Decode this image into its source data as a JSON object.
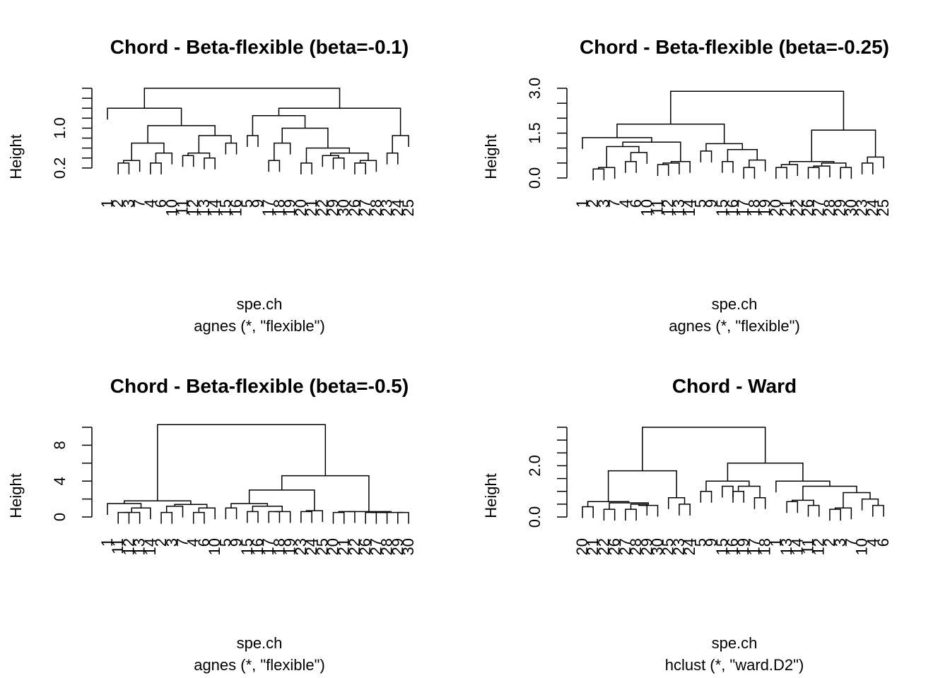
{
  "chart_data": [
    {
      "type": "dendrogram",
      "title": "Chord - Beta-flexible (beta=-0.1)",
      "xlabel": "spe.ch",
      "sub": "agnes (*, \"flexible\")",
      "ylabel": "Height",
      "ylim": [
        0,
        1.8
      ],
      "yticks": [
        0.2,
        1.0
      ],
      "minor_ticks": [
        0.2,
        0.4,
        0.6,
        0.8,
        1.0,
        1.2,
        1.4,
        1.6,
        1.8
      ],
      "leaves": [
        "1",
        "2",
        "3",
        "7",
        "4",
        "6",
        "10",
        "11",
        "12",
        "13",
        "14",
        "15",
        "16",
        "5",
        "9",
        "17",
        "18",
        "19",
        "20",
        "21",
        "22",
        "29",
        "30",
        "26",
        "27",
        "28",
        "23",
        "24",
        "25"
      ],
      "merges": [
        {
          "id": "a1",
          "c": [
            "2",
            "3"
          ],
          "h": 0.3
        },
        {
          "id": "a2",
          "c": [
            "7",
            "a1"
          ],
          "h": 0.35
        },
        {
          "id": "a3",
          "c": [
            "4",
            "6"
          ],
          "h": 0.3
        },
        {
          "id": "a4",
          "c": [
            "a3",
            "10"
          ],
          "h": 0.5
        },
        {
          "id": "a5",
          "c": [
            "a2",
            "a4"
          ],
          "h": 0.7
        },
        {
          "id": "a6",
          "c": [
            "11",
            "12"
          ],
          "h": 0.45
        },
        {
          "id": "a7",
          "c": [
            "13",
            "14"
          ],
          "h": 0.4
        },
        {
          "id": "a8",
          "c": [
            "a6",
            "a7"
          ],
          "h": 0.5
        },
        {
          "id": "a9",
          "c": [
            "15",
            "16"
          ],
          "h": 0.7
        },
        {
          "id": "a10",
          "c": [
            "a8",
            "a9"
          ],
          "h": 0.85
        },
        {
          "id": "a11",
          "c": [
            "a5",
            "a10"
          ],
          "h": 1.05
        },
        {
          "id": "a12",
          "c": [
            "1",
            "a11"
          ],
          "h": 1.4
        },
        {
          "id": "b1",
          "c": [
            "5",
            "9"
          ],
          "h": 0.85
        },
        {
          "id": "b2",
          "c": [
            "17",
            "18"
          ],
          "h": 0.35
        },
        {
          "id": "b3",
          "c": [
            "b2",
            "19"
          ],
          "h": 0.7
        },
        {
          "id": "b4",
          "c": [
            "20",
            "21"
          ],
          "h": 0.3
        },
        {
          "id": "b5",
          "c": [
            "29",
            "30"
          ],
          "h": 0.4
        },
        {
          "id": "b6",
          "c": [
            "22",
            "b5"
          ],
          "h": 0.45
        },
        {
          "id": "b7",
          "c": [
            "26",
            "27"
          ],
          "h": 0.3
        },
        {
          "id": "b8",
          "c": [
            "b7",
            "28"
          ],
          "h": 0.35
        },
        {
          "id": "b9",
          "c": [
            "b6",
            "b8"
          ],
          "h": 0.5
        },
        {
          "id": "b10",
          "c": [
            "b4",
            "b9"
          ],
          "h": 0.6
        },
        {
          "id": "b11",
          "c": [
            "b3",
            "b10"
          ],
          "h": 1.0
        },
        {
          "id": "b12",
          "c": [
            "b1",
            "b11"
          ],
          "h": 1.25
        },
        {
          "id": "b13",
          "c": [
            "23",
            "24"
          ],
          "h": 0.5
        },
        {
          "id": "b14",
          "c": [
            "b13",
            "25"
          ],
          "h": 0.85
        },
        {
          "id": "b15",
          "c": [
            "b12",
            "b14"
          ],
          "h": 1.4
        },
        {
          "id": "root",
          "c": [
            "a12",
            "b15"
          ],
          "h": 1.8
        }
      ]
    },
    {
      "type": "dendrogram",
      "title": "Chord - Beta-flexible (beta=-0.25)",
      "xlabel": "spe.ch",
      "sub": "agnes (*, \"flexible\")",
      "ylabel": "Height",
      "ylim": [
        0,
        3.0
      ],
      "yticks": [
        0.0,
        1.5,
        3.0
      ],
      "minor_ticks": [
        0.0,
        0.5,
        1.0,
        1.5,
        2.0,
        2.5,
        3.0
      ],
      "leaves": [
        "1",
        "2",
        "3",
        "7",
        "4",
        "6",
        "10",
        "11",
        "12",
        "13",
        "14",
        "5",
        "9",
        "15",
        "16",
        "17",
        "18",
        "19",
        "20",
        "21",
        "22",
        "26",
        "27",
        "28",
        "29",
        "30",
        "23",
        "24",
        "25"
      ],
      "merges": [
        {
          "id": "a1",
          "c": [
            "2",
            "3"
          ],
          "h": 0.3
        },
        {
          "id": "a2",
          "c": [
            "a1",
            "7"
          ],
          "h": 0.35
        },
        {
          "id": "a3",
          "c": [
            "4",
            "6"
          ],
          "h": 0.55
        },
        {
          "id": "a4",
          "c": [
            "a3",
            "10"
          ],
          "h": 0.85
        },
        {
          "id": "a5",
          "c": [
            "a2",
            "a4"
          ],
          "h": 1.05
        },
        {
          "id": "a6",
          "c": [
            "11",
            "12"
          ],
          "h": 0.45
        },
        {
          "id": "a7",
          "c": [
            "a6",
            "13"
          ],
          "h": 0.5
        },
        {
          "id": "a8",
          "c": [
            "a7",
            "14"
          ],
          "h": 0.55
        },
        {
          "id": "a9",
          "c": [
            "a5",
            "a8"
          ],
          "h": 1.2
        },
        {
          "id": "a10",
          "c": [
            "1",
            "a9"
          ],
          "h": 1.35
        },
        {
          "id": "a11",
          "c": [
            "5",
            "9"
          ],
          "h": 0.9
        },
        {
          "id": "a12",
          "c": [
            "15",
            "16"
          ],
          "h": 0.55
        },
        {
          "id": "a13",
          "c": [
            "17",
            "18"
          ],
          "h": 0.35
        },
        {
          "id": "a14",
          "c": [
            "a13",
            "19"
          ],
          "h": 0.6
        },
        {
          "id": "a15",
          "c": [
            "a12",
            "a14"
          ],
          "h": 0.95
        },
        {
          "id": "a16",
          "c": [
            "a11",
            "a15"
          ],
          "h": 1.15
        },
        {
          "id": "a17",
          "c": [
            "a10",
            "a16"
          ],
          "h": 1.8
        },
        {
          "id": "b1",
          "c": [
            "20",
            "21"
          ],
          "h": 0.35
        },
        {
          "id": "b2",
          "c": [
            "b1",
            "22"
          ],
          "h": 0.45
        },
        {
          "id": "b3",
          "c": [
            "26",
            "27"
          ],
          "h": 0.35
        },
        {
          "id": "b4",
          "c": [
            "b3",
            "28"
          ],
          "h": 0.4
        },
        {
          "id": "b5",
          "c": [
            "29",
            "30"
          ],
          "h": 0.35
        },
        {
          "id": "b6",
          "c": [
            "b4",
            "b5"
          ],
          "h": 0.5
        },
        {
          "id": "b7",
          "c": [
            "b2",
            "b6"
          ],
          "h": 0.55
        },
        {
          "id": "b8",
          "c": [
            "23",
            "24"
          ],
          "h": 0.5
        },
        {
          "id": "b9",
          "c": [
            "b8",
            "25"
          ],
          "h": 0.7
        },
        {
          "id": "b10",
          "c": [
            "b7",
            "b9"
          ],
          "h": 1.6
        },
        {
          "id": "root",
          "c": [
            "a17",
            "b10"
          ],
          "h": 2.9
        }
      ]
    },
    {
      "type": "dendrogram",
      "title": "Chord - Beta-flexible (beta=-0.5)",
      "xlabel": "spe.ch",
      "sub": "agnes (*, \"flexible\")",
      "ylabel": "Height",
      "ylim": [
        0,
        10
      ],
      "yticks": [
        0,
        4,
        8
      ],
      "minor_ticks": [
        0,
        2,
        4,
        6,
        8,
        10
      ],
      "leaves": [
        "1",
        "11",
        "12",
        "13",
        "14",
        "2",
        "3",
        "7",
        "4",
        "6",
        "10",
        "5",
        "9",
        "15",
        "16",
        "17",
        "18",
        "19",
        "23",
        "24",
        "25",
        "20",
        "21",
        "22",
        "26",
        "27",
        "28",
        "29",
        "30"
      ],
      "merges": [
        {
          "id": "a1",
          "c": [
            "11",
            "12"
          ],
          "h": 0.5
        },
        {
          "id": "a2",
          "c": [
            "a1",
            "13"
          ],
          "h": 0.5
        },
        {
          "id": "a3",
          "c": [
            "a2",
            "14"
          ],
          "h": 1.0
        },
        {
          "id": "a4",
          "c": [
            "1",
            "a3"
          ],
          "h": 1.5
        },
        {
          "id": "a5",
          "c": [
            "2",
            "3"
          ],
          "h": 0.5
        },
        {
          "id": "a6",
          "c": [
            "a5",
            "7"
          ],
          "h": 1.2
        },
        {
          "id": "a7",
          "c": [
            "4",
            "6"
          ],
          "h": 0.5
        },
        {
          "id": "a8",
          "c": [
            "a7",
            "10"
          ],
          "h": 1.0
        },
        {
          "id": "a9",
          "c": [
            "a6",
            "a8"
          ],
          "h": 1.4
        },
        {
          "id": "a10",
          "c": [
            "a4",
            "a9"
          ],
          "h": 1.8
        },
        {
          "id": "b1",
          "c": [
            "5",
            "9"
          ],
          "h": 1.0
        },
        {
          "id": "b2",
          "c": [
            "15",
            "16"
          ],
          "h": 0.6
        },
        {
          "id": "b3",
          "c": [
            "17",
            "18"
          ],
          "h": 0.6
        },
        {
          "id": "b4",
          "c": [
            "b3",
            "19"
          ],
          "h": 0.6
        },
        {
          "id": "b5",
          "c": [
            "b2",
            "b4"
          ],
          "h": 1.2
        },
        {
          "id": "b6",
          "c": [
            "b1",
            "b5"
          ],
          "h": 1.5
        },
        {
          "id": "b7",
          "c": [
            "23",
            "24"
          ],
          "h": 0.6
        },
        {
          "id": "b8",
          "c": [
            "b7",
            "25"
          ],
          "h": 0.7
        },
        {
          "id": "b9",
          "c": [
            "b6",
            "b8"
          ],
          "h": 3.0
        },
        {
          "id": "b10",
          "c": [
            "20",
            "21"
          ],
          "h": 0.5
        },
        {
          "id": "b11",
          "c": [
            "b10",
            "22"
          ],
          "h": 0.6
        },
        {
          "id": "b12",
          "c": [
            "26",
            "27"
          ],
          "h": 0.5
        },
        {
          "id": "b13",
          "c": [
            "b12",
            "28"
          ],
          "h": 0.5
        },
        {
          "id": "b14",
          "c": [
            "29",
            "30"
          ],
          "h": 0.5
        },
        {
          "id": "b15",
          "c": [
            "b13",
            "b14"
          ],
          "h": 0.5
        },
        {
          "id": "b16",
          "c": [
            "b11",
            "b15"
          ],
          "h": 0.6
        },
        {
          "id": "b17",
          "c": [
            "b9",
            "b16"
          ],
          "h": 4.6
        },
        {
          "id": "root",
          "c": [
            "a10",
            "b17"
          ],
          "h": 10.3
        }
      ]
    },
    {
      "type": "dendrogram",
      "title": "Chord - Ward",
      "xlabel": "spe.ch",
      "sub": "hclust (*, \"ward.D2\")",
      "ylabel": "Height",
      "ylim": [
        0,
        3.5
      ],
      "yticks": [
        0.0,
        2.0
      ],
      "minor_ticks": [
        0.0,
        0.5,
        1.0,
        1.5,
        2.0,
        2.5,
        3.0,
        3.5
      ],
      "leaves": [
        "20",
        "21",
        "22",
        "26",
        "27",
        "28",
        "29",
        "30",
        "25",
        "23",
        "24",
        "5",
        "9",
        "15",
        "16",
        "19",
        "17",
        "18",
        "1",
        "13",
        "14",
        "11",
        "12",
        "2",
        "3",
        "7",
        "10",
        "4",
        "6"
      ],
      "merges": [
        {
          "id": "a1",
          "c": [
            "20",
            "21"
          ],
          "h": 0.4
        },
        {
          "id": "a2",
          "c": [
            "22",
            "26"
          ],
          "h": 0.3
        },
        {
          "id": "a3",
          "c": [
            "27",
            "28"
          ],
          "h": 0.3
        },
        {
          "id": "a4",
          "c": [
            "a3",
            "29"
          ],
          "h": 0.5
        },
        {
          "id": "a5",
          "c": [
            "a4",
            "30"
          ],
          "h": 0.45
        },
        {
          "id": "a6",
          "c": [
            "a2",
            "a5"
          ],
          "h": 0.55
        },
        {
          "id": "a7",
          "c": [
            "a1",
            "a6"
          ],
          "h": 0.6
        },
        {
          "id": "a8",
          "c": [
            "23",
            "24"
          ],
          "h": 0.5
        },
        {
          "id": "a9",
          "c": [
            "25",
            "a8"
          ],
          "h": 0.75
        },
        {
          "id": "a10",
          "c": [
            "a7",
            "a9"
          ],
          "h": 1.8
        },
        {
          "id": "b1",
          "c": [
            "5",
            "9"
          ],
          "h": 1.0
        },
        {
          "id": "b2",
          "c": [
            "15",
            "16"
          ],
          "h": 1.2
        },
        {
          "id": "b3",
          "c": [
            "16",
            "19"
          ],
          "h": 1.0
        },
        {
          "id": "b4",
          "c": [
            "17",
            "18"
          ],
          "h": 0.75
        },
        {
          "id": "b5",
          "c": [
            "b3",
            "b4"
          ],
          "h": 1.2
        },
        {
          "id": "b6",
          "c": [
            "b1",
            "b5"
          ],
          "h": 1.4
        },
        {
          "id": "c1",
          "c": [
            "13",
            "14"
          ],
          "h": 0.6
        },
        {
          "id": "c2",
          "c": [
            "11",
            "12"
          ],
          "h": 0.45
        },
        {
          "id": "c3",
          "c": [
            "c1",
            "c2"
          ],
          "h": 0.65
        },
        {
          "id": "c4",
          "c": [
            "2",
            "3"
          ],
          "h": 0.3
        },
        {
          "id": "c5",
          "c": [
            "c4",
            "7"
          ],
          "h": 0.35
        },
        {
          "id": "c6",
          "c": [
            "4",
            "6"
          ],
          "h": 0.45
        },
        {
          "id": "c7",
          "c": [
            "10",
            "c6"
          ],
          "h": 0.7
        },
        {
          "id": "c8",
          "c": [
            "c5",
            "c7"
          ],
          "h": 0.95
        },
        {
          "id": "c9",
          "c": [
            "c3",
            "c8"
          ],
          "h": 1.2
        },
        {
          "id": "c10",
          "c": [
            "1",
            "c9"
          ],
          "h": 1.4
        },
        {
          "id": "c11",
          "c": [
            "b6",
            "c10"
          ],
          "h": 2.1
        },
        {
          "id": "root",
          "c": [
            "a10",
            "c11"
          ],
          "h": 3.5
        }
      ]
    }
  ]
}
